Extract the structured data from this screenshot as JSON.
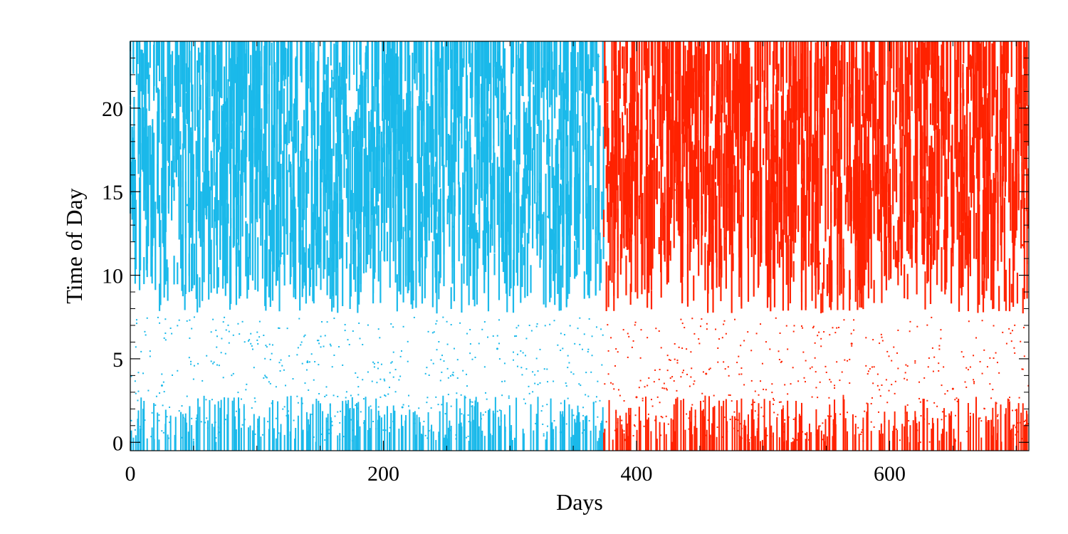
{
  "chart_data": {
    "type": "scatter",
    "title": "",
    "xlabel": "Days",
    "ylabel": "Time of Day",
    "xlim": [
      0,
      710
    ],
    "ylim": [
      -0.5,
      24
    ],
    "xticks": [
      {
        "value": 0,
        "label": "0"
      },
      {
        "value": 200,
        "label": "200"
      },
      {
        "value": 400,
        "label": "400"
      },
      {
        "value": 600,
        "label": "600"
      }
    ],
    "yticks": [
      {
        "value": 0,
        "label": "0"
      },
      {
        "value": 5,
        "label": "5"
      },
      {
        "value": 10,
        "label": "10"
      },
      {
        "value": 15,
        "label": "15"
      },
      {
        "value": 20,
        "label": "20"
      }
    ],
    "grid": false,
    "legend": "none",
    "series": [
      {
        "color": "#1ab9ea",
        "day_range": [
          0,
          374
        ],
        "active_hours": [
          8,
          24
        ],
        "points": [
          [
            12,
            22.5
          ],
          [
            45,
            14.2
          ],
          [
            88,
            18.6
          ],
          [
            120,
            11.3
          ],
          [
            160,
            21.8
          ],
          [
            210,
            16.4
          ],
          [
            255,
            12.9
          ],
          [
            300,
            19.7
          ],
          [
            330,
            13.5
          ],
          [
            370,
            23.1
          ],
          [
            25,
            3.4
          ],
          [
            67,
            1.2
          ],
          [
            140,
            4.8
          ],
          [
            215,
            2.1
          ],
          [
            290,
            5.6
          ],
          [
            340,
            0.6
          ]
        ]
      },
      {
        "color": "#ff2200",
        "day_range": [
          374,
          710
        ],
        "active_hours": [
          8,
          24
        ],
        "points": [
          [
            390,
            21.4
          ],
          [
            430,
            15.1
          ],
          [
            470,
            12.2
          ],
          [
            510,
            18.3
          ],
          [
            545,
            10.7
          ],
          [
            590,
            22.0
          ],
          [
            630,
            14.6
          ],
          [
            680,
            17.5
          ],
          [
            705,
            11.8
          ],
          [
            400,
            2.7
          ],
          [
            455,
            4.1
          ],
          [
            520,
            1.5
          ],
          [
            570,
            5.9
          ],
          [
            650,
            3.2
          ],
          [
            700,
            0.9
          ]
        ]
      }
    ]
  }
}
